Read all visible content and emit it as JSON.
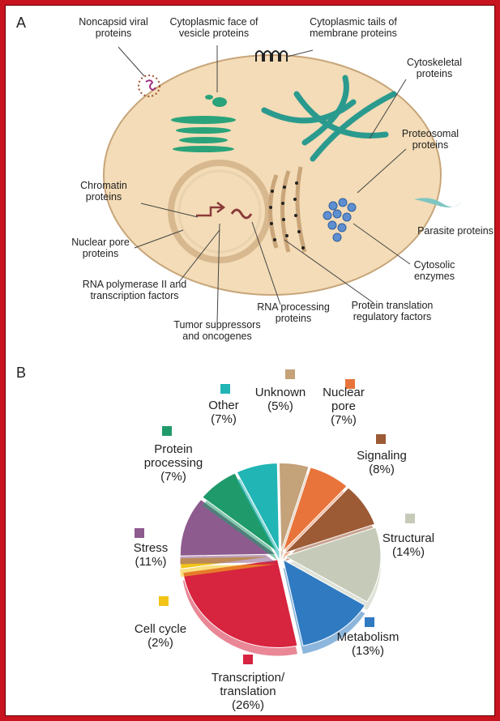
{
  "panel_a": {
    "label": "A",
    "labels": [
      "Noncapsid viral proteins",
      "Cytoplasmic face of vesicle proteins",
      "Cytoplasmic tails of membrane proteins",
      "Cytoskeletal proteins",
      "Proteosomal proteins",
      "Chromatin proteins",
      "Parasite proteins",
      "Nuclear pore proteins",
      "Cytosolic enzymes",
      "RNA polymerase II and transcription factors",
      "RNA processing proteins",
      "Protein translation regulatory factors",
      "Tumor suppressors and oncogenes"
    ]
  },
  "chart_data": {
    "type": "pie",
    "panel_label": "B",
    "categories": [
      "Unknown",
      "Nuclear pore",
      "Signaling",
      "Structural",
      "Metabolism",
      "Transcription/ translation",
      "Cell cycle",
      "Stress",
      "Protein processing",
      "Other"
    ],
    "values": [
      5,
      7,
      8,
      14,
      13,
      26,
      2,
      11,
      7,
      7
    ],
    "value_labels": [
      "(5%)",
      "(7%)",
      "(8%)",
      "(14%)",
      "(13%)",
      "(26%)",
      "(2%)",
      "(11%)",
      "(7%)",
      "(7%)"
    ],
    "colors": [
      "#c4a27a",
      "#e8743b",
      "#9c5a35",
      "#c5cbb8",
      "#2f7ac0",
      "#d7243f",
      "#f2c417",
      "#8e5b8e",
      "#1f9a6a",
      "#22b5b5"
    ]
  }
}
